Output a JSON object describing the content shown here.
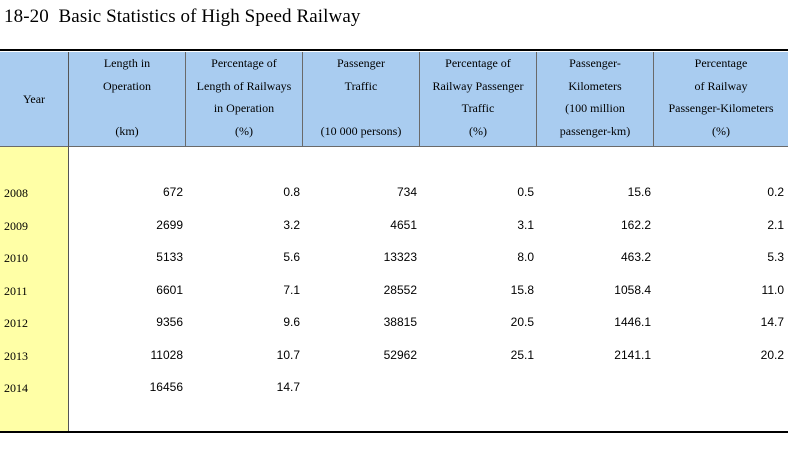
{
  "title": "18-20  Basic Statistics of High Speed Railway",
  "columns": [
    {
      "key": "year",
      "lines": [
        "Year"
      ]
    },
    {
      "key": "length",
      "lines": [
        "Length in",
        "Operation",
        "",
        "(km)"
      ]
    },
    {
      "key": "pct_length",
      "lines": [
        "Percentage of",
        "Length of Railways",
        "in Operation",
        "(%)"
      ]
    },
    {
      "key": "passengers",
      "lines": [
        "Passenger",
        "Traffic",
        "",
        "(10 000 persons)"
      ]
    },
    {
      "key": "pct_passengers",
      "lines": [
        "Percentage of",
        "Railway Passenger",
        "Traffic",
        "(%)"
      ]
    },
    {
      "key": "pkm",
      "lines": [
        "Passenger-",
        "Kilometers",
        "(100 million",
        "passenger-km)"
      ]
    },
    {
      "key": "pct_pkm",
      "lines": [
        "Percentage",
        "of Railway",
        "Passenger-Kilometers",
        "(%)"
      ]
    }
  ],
  "rows": [
    {
      "year": "2008",
      "values": [
        "672",
        "0.8",
        "734",
        "0.5",
        "15.6",
        "0.2"
      ]
    },
    {
      "year": "2009",
      "values": [
        "2699",
        "3.2",
        "4651",
        "3.1",
        "162.2",
        "2.1"
      ]
    },
    {
      "year": "2010",
      "values": [
        "5133",
        "5.6",
        "13323",
        "8.0",
        "463.2",
        "5.3"
      ]
    },
    {
      "year": "2011",
      "values": [
        "6601",
        "7.1",
        "28552",
        "15.8",
        "1058.4",
        "11.0"
      ]
    },
    {
      "year": "2012",
      "values": [
        "9356",
        "9.6",
        "38815",
        "20.5",
        "1446.1",
        "14.7"
      ]
    },
    {
      "year": "2013",
      "values": [
        "11028",
        "10.7",
        "52962",
        "25.1",
        "2141.1",
        "20.2"
      ]
    },
    {
      "year": "2014",
      "values": [
        "16456",
        "14.7",
        "",
        "",
        "",
        ""
      ]
    }
  ]
}
